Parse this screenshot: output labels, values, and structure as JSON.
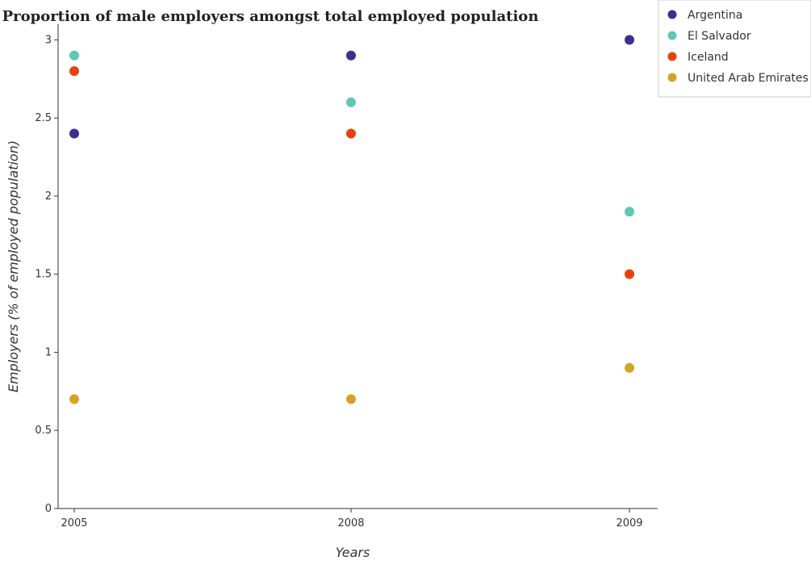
{
  "chart_data": {
    "type": "scatter",
    "title": "Proportion of male employers amongst total employed population",
    "xlabel": "Years",
    "ylabel": "Employers (% of employed population)",
    "categories": [
      "2005",
      "2008",
      "2009"
    ],
    "ylim": [
      0,
      3.1
    ],
    "yticks": [
      "0",
      "0.5",
      "1",
      "1.5",
      "2",
      "2.5",
      "3"
    ],
    "grid": false,
    "legend_position": "top-right",
    "series": [
      {
        "name": "Argentina",
        "color": "#3a2f8f",
        "values": [
          2.4,
          2.9,
          3.0
        ]
      },
      {
        "name": "El Salvador",
        "color": "#5fc7b7",
        "values": [
          2.9,
          2.6,
          1.9
        ]
      },
      {
        "name": "Iceland",
        "color": "#e8410d",
        "values": [
          2.8,
          2.4,
          1.5
        ]
      },
      {
        "name": "United Arab Emirates",
        "color": "#d4a326",
        "values": [
          0.7,
          0.7,
          0.9
        ]
      }
    ]
  }
}
